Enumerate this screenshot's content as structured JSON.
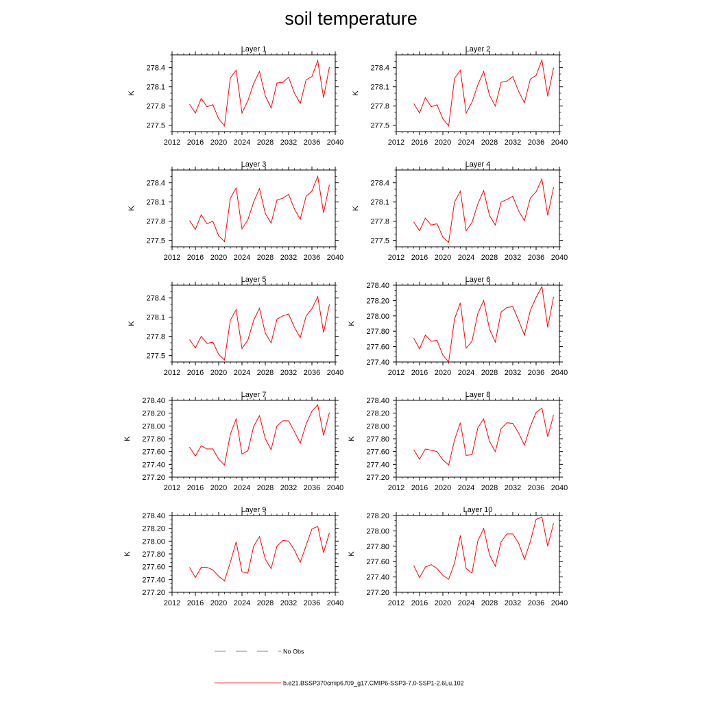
{
  "title": "soil temperature",
  "legend": [
    {
      "label": "No Obs",
      "color": "#5050d0",
      "dash": true
    },
    {
      "label": "b.e21.BSSP370cmip6.f09_g17.CMIP6-SSP3-7.0-SSP1-2.6Lu.102",
      "color": "#ff0000",
      "dash": false
    }
  ],
  "chart_data": [
    {
      "type": "line",
      "title": "Layer 1",
      "ylabel": "K",
      "xlim": [
        2012,
        2040
      ],
      "ylim": [
        277.4,
        278.6
      ],
      "xticks": [
        2012,
        2016,
        2020,
        2024,
        2028,
        2032,
        2036,
        2040
      ],
      "yticks": [
        277.5,
        277.8,
        278.1,
        278.4
      ],
      "ytick_decimals": 1,
      "series": [
        {
          "color": "#ff0000",
          "x": [
            2015,
            2016,
            2017,
            2018,
            2019,
            2020,
            2021,
            2022,
            2023,
            2024,
            2025,
            2026,
            2027,
            2028,
            2029,
            2030,
            2031,
            2032,
            2033,
            2034,
            2035,
            2036,
            2037,
            2038,
            2039
          ],
          "y": [
            277.83,
            277.69,
            277.92,
            277.79,
            277.82,
            277.6,
            277.49,
            278.24,
            278.36,
            277.69,
            277.88,
            278.15,
            278.34,
            277.96,
            277.77,
            278.16,
            278.17,
            278.25,
            278.0,
            277.84,
            278.21,
            278.26,
            278.51,
            277.93,
            278.41
          ]
        }
      ]
    },
    {
      "type": "line",
      "title": "Layer 2",
      "ylabel": "K",
      "xlim": [
        2012,
        2040
      ],
      "ylim": [
        277.4,
        278.6
      ],
      "xticks": [
        2012,
        2016,
        2020,
        2024,
        2028,
        2032,
        2036,
        2040
      ],
      "yticks": [
        277.5,
        277.8,
        278.1,
        278.4
      ],
      "ytick_decimals": 1,
      "series": [
        {
          "color": "#ff0000",
          "x": [
            2015,
            2016,
            2017,
            2018,
            2019,
            2020,
            2021,
            2022,
            2023,
            2024,
            2025,
            2026,
            2027,
            2028,
            2029,
            2030,
            2031,
            2032,
            2033,
            2034,
            2035,
            2036,
            2037,
            2038,
            2039
          ],
          "y": [
            277.84,
            277.69,
            277.93,
            277.79,
            277.82,
            277.6,
            277.49,
            278.23,
            278.36,
            277.69,
            277.86,
            278.13,
            278.34,
            277.97,
            277.8,
            278.17,
            278.19,
            278.26,
            278.03,
            277.85,
            278.22,
            278.28,
            278.52,
            277.95,
            278.4
          ]
        }
      ]
    },
    {
      "type": "line",
      "title": "Layer 3",
      "ylabel": "K",
      "xlim": [
        2012,
        2040
      ],
      "ylim": [
        277.4,
        278.6
      ],
      "xticks": [
        2012,
        2016,
        2020,
        2024,
        2028,
        2032,
        2036,
        2040
      ],
      "yticks": [
        277.5,
        277.8,
        278.1,
        278.4
      ],
      "ytick_decimals": 1,
      "series": [
        {
          "color": "#ff0000",
          "x": [
            2015,
            2016,
            2017,
            2018,
            2019,
            2020,
            2021,
            2022,
            2023,
            2024,
            2025,
            2026,
            2027,
            2028,
            2029,
            2030,
            2031,
            2032,
            2033,
            2034,
            2035,
            2036,
            2037,
            2038,
            2039
          ],
          "y": [
            277.81,
            277.67,
            277.9,
            277.76,
            277.8,
            277.57,
            277.48,
            278.16,
            278.32,
            277.68,
            277.82,
            278.1,
            278.31,
            277.92,
            277.77,
            278.13,
            278.16,
            278.22,
            277.99,
            277.83,
            278.19,
            278.27,
            278.5,
            277.93,
            278.37
          ]
        }
      ]
    },
    {
      "type": "line",
      "title": "Layer 4",
      "ylabel": "K",
      "xlim": [
        2012,
        2040
      ],
      "ylim": [
        277.4,
        278.6
      ],
      "xticks": [
        2012,
        2016,
        2020,
        2024,
        2028,
        2032,
        2036,
        2040
      ],
      "yticks": [
        277.5,
        277.8,
        278.1,
        278.4
      ],
      "ytick_decimals": 1,
      "series": [
        {
          "color": "#ff0000",
          "x": [
            2015,
            2016,
            2017,
            2018,
            2019,
            2020,
            2021,
            2022,
            2023,
            2024,
            2025,
            2026,
            2027,
            2028,
            2029,
            2030,
            2031,
            2032,
            2033,
            2034,
            2035,
            2036,
            2037,
            2038,
            2039
          ],
          "y": [
            277.79,
            277.65,
            277.85,
            277.74,
            277.76,
            277.55,
            277.47,
            278.1,
            278.27,
            277.65,
            277.78,
            278.07,
            278.28,
            277.89,
            277.74,
            278.1,
            278.14,
            278.19,
            277.96,
            277.81,
            278.16,
            278.26,
            278.46,
            277.89,
            278.33
          ]
        }
      ]
    },
    {
      "type": "line",
      "title": "Layer 5",
      "ylabel": "K",
      "xlim": [
        2012,
        2040
      ],
      "ylim": [
        277.4,
        278.6
      ],
      "xticks": [
        2012,
        2016,
        2020,
        2024,
        2028,
        2032,
        2036,
        2040
      ],
      "yticks": [
        277.5,
        277.8,
        278.1,
        278.4
      ],
      "ytick_decimals": 1,
      "series": [
        {
          "color": "#ff0000",
          "x": [
            2015,
            2016,
            2017,
            2018,
            2019,
            2020,
            2021,
            2022,
            2023,
            2024,
            2025,
            2026,
            2027,
            2028,
            2029,
            2030,
            2031,
            2032,
            2033,
            2034,
            2035,
            2036,
            2037,
            2038,
            2039
          ],
          "y": [
            277.75,
            277.62,
            277.8,
            277.69,
            277.71,
            277.52,
            277.43,
            278.05,
            278.22,
            277.61,
            277.74,
            278.05,
            278.24,
            277.85,
            277.7,
            278.07,
            278.12,
            278.15,
            277.94,
            277.78,
            278.12,
            278.23,
            278.42,
            277.86,
            278.3
          ]
        }
      ]
    },
    {
      "type": "line",
      "title": "Layer 6",
      "ylabel": "K",
      "xlim": [
        2012,
        2040
      ],
      "ylim": [
        277.4,
        278.4
      ],
      "xticks": [
        2012,
        2016,
        2020,
        2024,
        2028,
        2032,
        2036,
        2040
      ],
      "yticks": [
        277.4,
        277.6,
        277.8,
        278.0,
        278.2,
        278.4
      ],
      "ytick_decimals": 2,
      "series": [
        {
          "color": "#ff0000",
          "x": [
            2015,
            2016,
            2017,
            2018,
            2019,
            2020,
            2021,
            2022,
            2023,
            2024,
            2025,
            2026,
            2027,
            2028,
            2029,
            2030,
            2031,
            2032,
            2033,
            2034,
            2035,
            2036,
            2037,
            2038,
            2039
          ],
          "y": [
            277.71,
            277.57,
            277.75,
            277.67,
            277.68,
            277.49,
            277.4,
            277.96,
            278.17,
            277.58,
            277.67,
            278.03,
            278.2,
            277.83,
            277.66,
            278.05,
            278.11,
            278.12,
            277.94,
            277.75,
            278.07,
            278.24,
            278.38,
            277.85,
            278.25
          ]
        }
      ]
    },
    {
      "type": "line",
      "title": "Layer 7",
      "ylabel": "K",
      "xlim": [
        2012,
        2040
      ],
      "ylim": [
        277.2,
        278.4
      ],
      "xticks": [
        2012,
        2016,
        2020,
        2024,
        2028,
        2032,
        2036,
        2040
      ],
      "yticks": [
        277.2,
        277.4,
        277.6,
        277.8,
        278.0,
        278.2,
        278.4
      ],
      "ytick_decimals": 2,
      "series": [
        {
          "color": "#ff0000",
          "x": [
            2015,
            2016,
            2017,
            2018,
            2019,
            2020,
            2021,
            2022,
            2023,
            2024,
            2025,
            2026,
            2027,
            2028,
            2029,
            2030,
            2031,
            2032,
            2033,
            2034,
            2035,
            2036,
            2037,
            2038,
            2039
          ],
          "y": [
            277.67,
            277.53,
            277.69,
            277.64,
            277.64,
            277.48,
            277.39,
            277.87,
            278.11,
            277.56,
            277.61,
            277.99,
            278.16,
            277.8,
            277.63,
            278.0,
            278.08,
            278.08,
            277.91,
            277.73,
            278.03,
            278.23,
            278.33,
            277.85,
            278.21
          ]
        }
      ]
    },
    {
      "type": "line",
      "title": "Layer 8",
      "ylabel": "K",
      "xlim": [
        2012,
        2040
      ],
      "ylim": [
        277.2,
        278.4
      ],
      "xticks": [
        2012,
        2016,
        2020,
        2024,
        2028,
        2032,
        2036,
        2040
      ],
      "yticks": [
        277.2,
        277.4,
        277.6,
        277.8,
        278.0,
        278.2,
        278.4
      ],
      "ytick_decimals": 2,
      "series": [
        {
          "color": "#ff0000",
          "x": [
            2015,
            2016,
            2017,
            2018,
            2019,
            2020,
            2021,
            2022,
            2023,
            2024,
            2025,
            2026,
            2027,
            2028,
            2029,
            2030,
            2031,
            2032,
            2033,
            2034,
            2035,
            2036,
            2037,
            2038,
            2039
          ],
          "y": [
            277.63,
            277.48,
            277.64,
            277.62,
            277.6,
            277.47,
            277.39,
            277.78,
            278.05,
            277.54,
            277.55,
            277.97,
            278.11,
            277.76,
            277.6,
            277.96,
            278.05,
            278.04,
            277.89,
            277.7,
            277.99,
            278.21,
            278.28,
            277.83,
            278.17
          ]
        }
      ]
    },
    {
      "type": "line",
      "title": "Layer 9",
      "ylabel": "K",
      "xlim": [
        2012,
        2040
      ],
      "ylim": [
        277.2,
        278.4
      ],
      "xticks": [
        2012,
        2016,
        2020,
        2024,
        2028,
        2032,
        2036,
        2040
      ],
      "yticks": [
        277.2,
        277.4,
        277.6,
        277.8,
        278.0,
        278.2,
        278.4
      ],
      "ytick_decimals": 2,
      "series": [
        {
          "color": "#ff0000",
          "x": [
            2015,
            2016,
            2017,
            2018,
            2019,
            2020,
            2021,
            2022,
            2023,
            2024,
            2025,
            2026,
            2027,
            2028,
            2029,
            2030,
            2031,
            2032,
            2033,
            2034,
            2035,
            2036,
            2037,
            2038,
            2039
          ],
          "y": [
            277.59,
            277.43,
            277.59,
            277.59,
            277.55,
            277.45,
            277.38,
            277.67,
            277.99,
            277.52,
            277.5,
            277.92,
            278.07,
            277.72,
            277.57,
            277.92,
            278.01,
            278.0,
            277.86,
            277.67,
            277.93,
            278.19,
            278.23,
            277.82,
            278.13
          ]
        }
      ]
    },
    {
      "type": "line",
      "title": "Layer 10",
      "ylabel": "K",
      "xlim": [
        2012,
        2040
      ],
      "ylim": [
        277.2,
        278.2
      ],
      "xticks": [
        2012,
        2016,
        2020,
        2024,
        2028,
        2032,
        2036,
        2040
      ],
      "yticks": [
        277.2,
        277.4,
        277.6,
        277.8,
        278.0,
        278.2
      ],
      "ytick_decimals": 2,
      "series": [
        {
          "color": "#ff0000",
          "x": [
            2015,
            2016,
            2017,
            2018,
            2019,
            2020,
            2021,
            2022,
            2023,
            2024,
            2025,
            2026,
            2027,
            2028,
            2029,
            2030,
            2031,
            2032,
            2033,
            2034,
            2035,
            2036,
            2037,
            2038,
            2039
          ],
          "y": [
            277.55,
            277.39,
            277.53,
            277.56,
            277.51,
            277.42,
            277.37,
            277.58,
            277.94,
            277.51,
            277.45,
            277.87,
            278.03,
            277.69,
            277.54,
            277.86,
            277.96,
            277.96,
            277.84,
            277.63,
            277.86,
            278.15,
            278.18,
            277.8,
            278.1
          ]
        }
      ]
    }
  ]
}
